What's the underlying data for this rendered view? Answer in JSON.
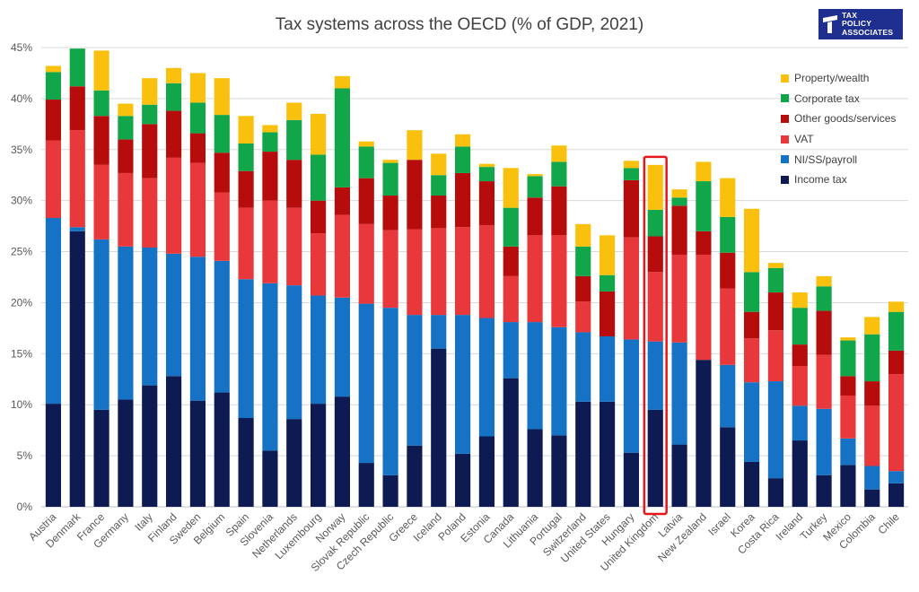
{
  "logo": {
    "line1": "TAX",
    "line2": "POLICY",
    "line3": "ASSOCIATES"
  },
  "chart_data": {
    "type": "bar",
    "stacked": true,
    "title": "Tax systems across the OECD (% of GDP, 2021)",
    "xlabel": "",
    "ylabel": "",
    "ylim": [
      0,
      45
    ],
    "yticks": [
      "0%",
      "5%",
      "10%",
      "15%",
      "20%",
      "25%",
      "30%",
      "35%",
      "40%",
      "45%"
    ],
    "grid": true,
    "legend_position": "right",
    "highlight": "United Kingdom",
    "highlight_color": "#e8161b",
    "categories": [
      "Austria",
      "Denmark",
      "France",
      "Germany",
      "Italy",
      "Finland",
      "Sweden",
      "Belgium",
      "Spain",
      "Slovenia",
      "Netherlands",
      "Luxembourg",
      "Norway",
      "Slovak Republic",
      "Czech Republic",
      "Greece",
      "Iceland",
      "Poland",
      "Estonia",
      "Canada",
      "Lithuania",
      "Portugal",
      "Switzerland",
      "United States",
      "Hungary",
      "United Kingdom",
      "Latvia",
      "New Zealand",
      "Israel",
      "Korea",
      "Costa Rica",
      "Ireland",
      "Turkey",
      "Mexico",
      "Colombia",
      "Chile"
    ],
    "series": [
      {
        "name": "Income tax",
        "color": "#0d1b52",
        "values": [
          10.1,
          27.0,
          9.5,
          10.5,
          11.9,
          12.8,
          10.4,
          11.2,
          8.7,
          5.5,
          8.6,
          10.1,
          10.8,
          4.3,
          3.1,
          6.0,
          15.5,
          5.2,
          6.9,
          12.6,
          7.6,
          7.0,
          10.3,
          10.3,
          5.3,
          9.5,
          6.1,
          14.4,
          7.8,
          4.4,
          2.8,
          6.5,
          3.1,
          4.1,
          1.7,
          2.3
        ]
      },
      {
        "name": "NI/SS/payroll",
        "color": "#1672c4",
        "values": [
          18.2,
          0.4,
          16.7,
          15.0,
          13.5,
          12.0,
          14.1,
          12.9,
          13.6,
          16.4,
          13.1,
          10.6,
          9.7,
          15.6,
          16.4,
          12.8,
          3.3,
          13.6,
          11.6,
          5.5,
          10.5,
          10.6,
          6.8,
          6.4,
          11.1,
          6.7,
          10.0,
          0.0,
          6.1,
          7.8,
          9.5,
          3.4,
          6.5,
          2.6,
          2.3,
          1.2
        ]
      },
      {
        "name": "VAT",
        "color": "#e8383b",
        "values": [
          7.6,
          9.5,
          7.3,
          7.2,
          6.8,
          9.4,
          9.2,
          6.7,
          7.0,
          8.1,
          7.6,
          6.1,
          8.1,
          7.8,
          7.6,
          8.4,
          8.5,
          8.6,
          9.1,
          4.5,
          8.5,
          9.0,
          3.0,
          0.0,
          10.0,
          6.8,
          8.6,
          10.3,
          7.5,
          4.3,
          5.0,
          3.9,
          5.3,
          4.2,
          5.9,
          9.5
        ]
      },
      {
        "name": "Other goods/services",
        "color": "#b70c0c",
        "values": [
          4.0,
          4.3,
          4.8,
          3.3,
          5.3,
          4.6,
          2.9,
          3.9,
          3.6,
          4.8,
          4.7,
          3.2,
          2.7,
          4.5,
          3.4,
          6.8,
          3.2,
          5.3,
          4.3,
          2.9,
          3.7,
          4.8,
          2.5,
          4.4,
          5.6,
          3.5,
          4.8,
          2.3,
          3.5,
          2.6,
          3.7,
          2.1,
          4.3,
          1.9,
          2.4,
          2.3
        ]
      },
      {
        "name": "Corporate tax",
        "color": "#12a64b",
        "values": [
          2.7,
          3.7,
          2.5,
          2.3,
          1.9,
          2.7,
          3.0,
          3.7,
          2.7,
          1.9,
          3.9,
          4.5,
          9.7,
          3.1,
          3.2,
          0.0,
          2.0,
          2.6,
          1.4,
          3.8,
          2.1,
          2.4,
          2.9,
          1.6,
          1.2,
          2.6,
          0.8,
          4.9,
          3.5,
          3.9,
          2.4,
          3.6,
          2.4,
          3.5,
          4.6,
          3.8
        ]
      },
      {
        "name": "Property/wealth",
        "color": "#f9c10d",
        "values": [
          0.6,
          0.0,
          3.9,
          1.2,
          2.6,
          1.5,
          2.9,
          3.6,
          2.7,
          0.7,
          1.7,
          4.0,
          1.2,
          0.5,
          0.3,
          2.9,
          2.1,
          1.2,
          0.3,
          3.9,
          0.2,
          1.6,
          2.2,
          3.9,
          0.7,
          4.4,
          0.8,
          1.9,
          3.8,
          6.2,
          0.5,
          1.5,
          1.0,
          0.3,
          1.7,
          1.0
        ]
      }
    ]
  }
}
